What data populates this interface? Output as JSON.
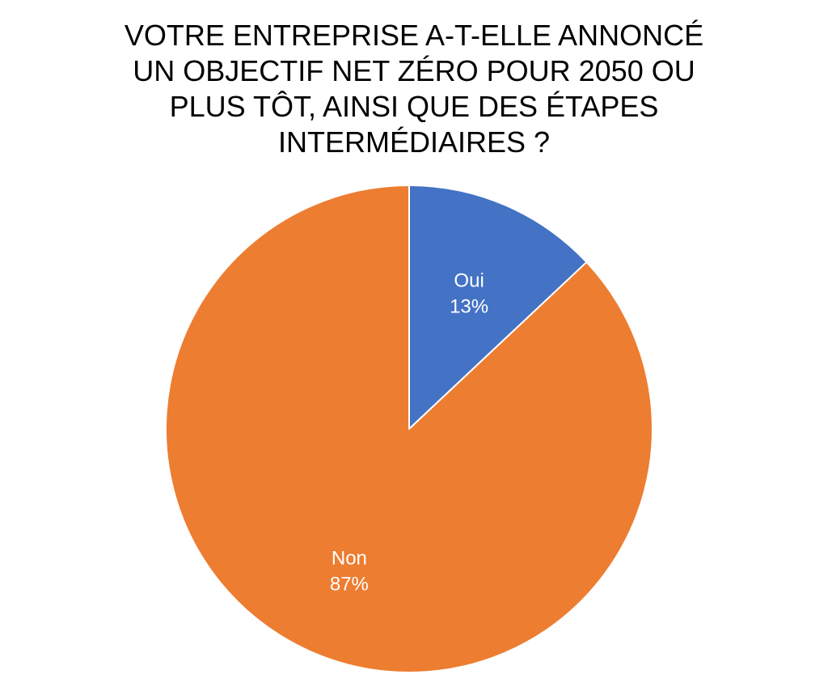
{
  "chart_data": {
    "type": "pie",
    "title_lines": [
      "VOTRE ENTREPRISE A-T-ELLE ANNONCÉ",
      "UN OBJECTIF NET ZÉRO POUR 2050 OU",
      "PLUS TÔT, AINSI QUE DES ÉTAPES",
      "INTERMÉDIAIRES ?"
    ],
    "slices": [
      {
        "label": "Oui",
        "value": 13,
        "percent_label": "13%",
        "color": "#4472C4"
      },
      {
        "label": "Non",
        "value": 87,
        "percent_label": "87%",
        "color": "#ED7D31"
      }
    ]
  }
}
